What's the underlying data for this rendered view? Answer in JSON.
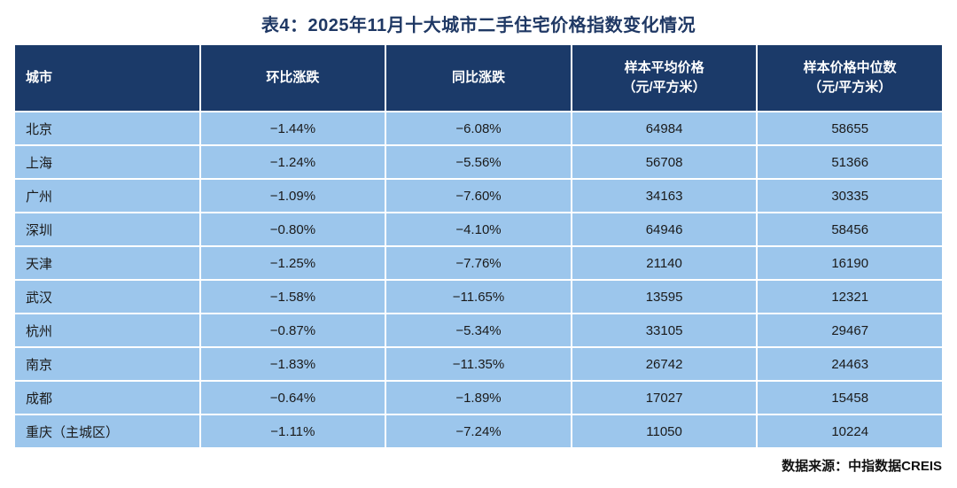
{
  "title": "表4：2025年11月十大城市二手住宅价格指数变化情况",
  "source_note": "数据来源：中指数据CREIS",
  "colors": {
    "title_text": "#1F3864",
    "header_bg": "#1B3A69",
    "header_text": "#FFFFFF",
    "row_bg": "#9CC6EC",
    "body_text": "#1A1A1A",
    "grid": "#FFFFFF"
  },
  "chart_data": {
    "type": "table",
    "title": "表4：2025年11月十大城市二手住宅价格指数变化情况",
    "columns": [
      {
        "line1": "城市",
        "line2": ""
      },
      {
        "line1": "环比涨跌",
        "line2": ""
      },
      {
        "line1": "同比涨跌",
        "line2": ""
      },
      {
        "line1": "样本平均价格",
        "line2": "（元/平方米）"
      },
      {
        "line1": "样本价格中位数",
        "line2": "（元/平方米）"
      }
    ],
    "rows": [
      [
        "北京",
        "−1.44%",
        "−6.08%",
        "64984",
        "58655"
      ],
      [
        "上海",
        "−1.24%",
        "−5.56%",
        "56708",
        "51366"
      ],
      [
        "广州",
        "−1.09%",
        "−7.60%",
        "34163",
        "30335"
      ],
      [
        "深圳",
        "−0.80%",
        "−4.10%",
        "64946",
        "58456"
      ],
      [
        "天津",
        "−1.25%",
        "−7.76%",
        "21140",
        "16190"
      ],
      [
        "武汉",
        "−1.58%",
        "−11.65%",
        "13595",
        "12321"
      ],
      [
        "杭州",
        "−0.87%",
        "−5.34%",
        "33105",
        "29467"
      ],
      [
        "南京",
        "−1.83%",
        "−11.35%",
        "26742",
        "24463"
      ],
      [
        "成都",
        "−0.64%",
        "−1.89%",
        "17027",
        "15458"
      ],
      [
        "重庆（主城区）",
        "−1.11%",
        "−7.24%",
        "11050",
        "10224"
      ]
    ]
  }
}
